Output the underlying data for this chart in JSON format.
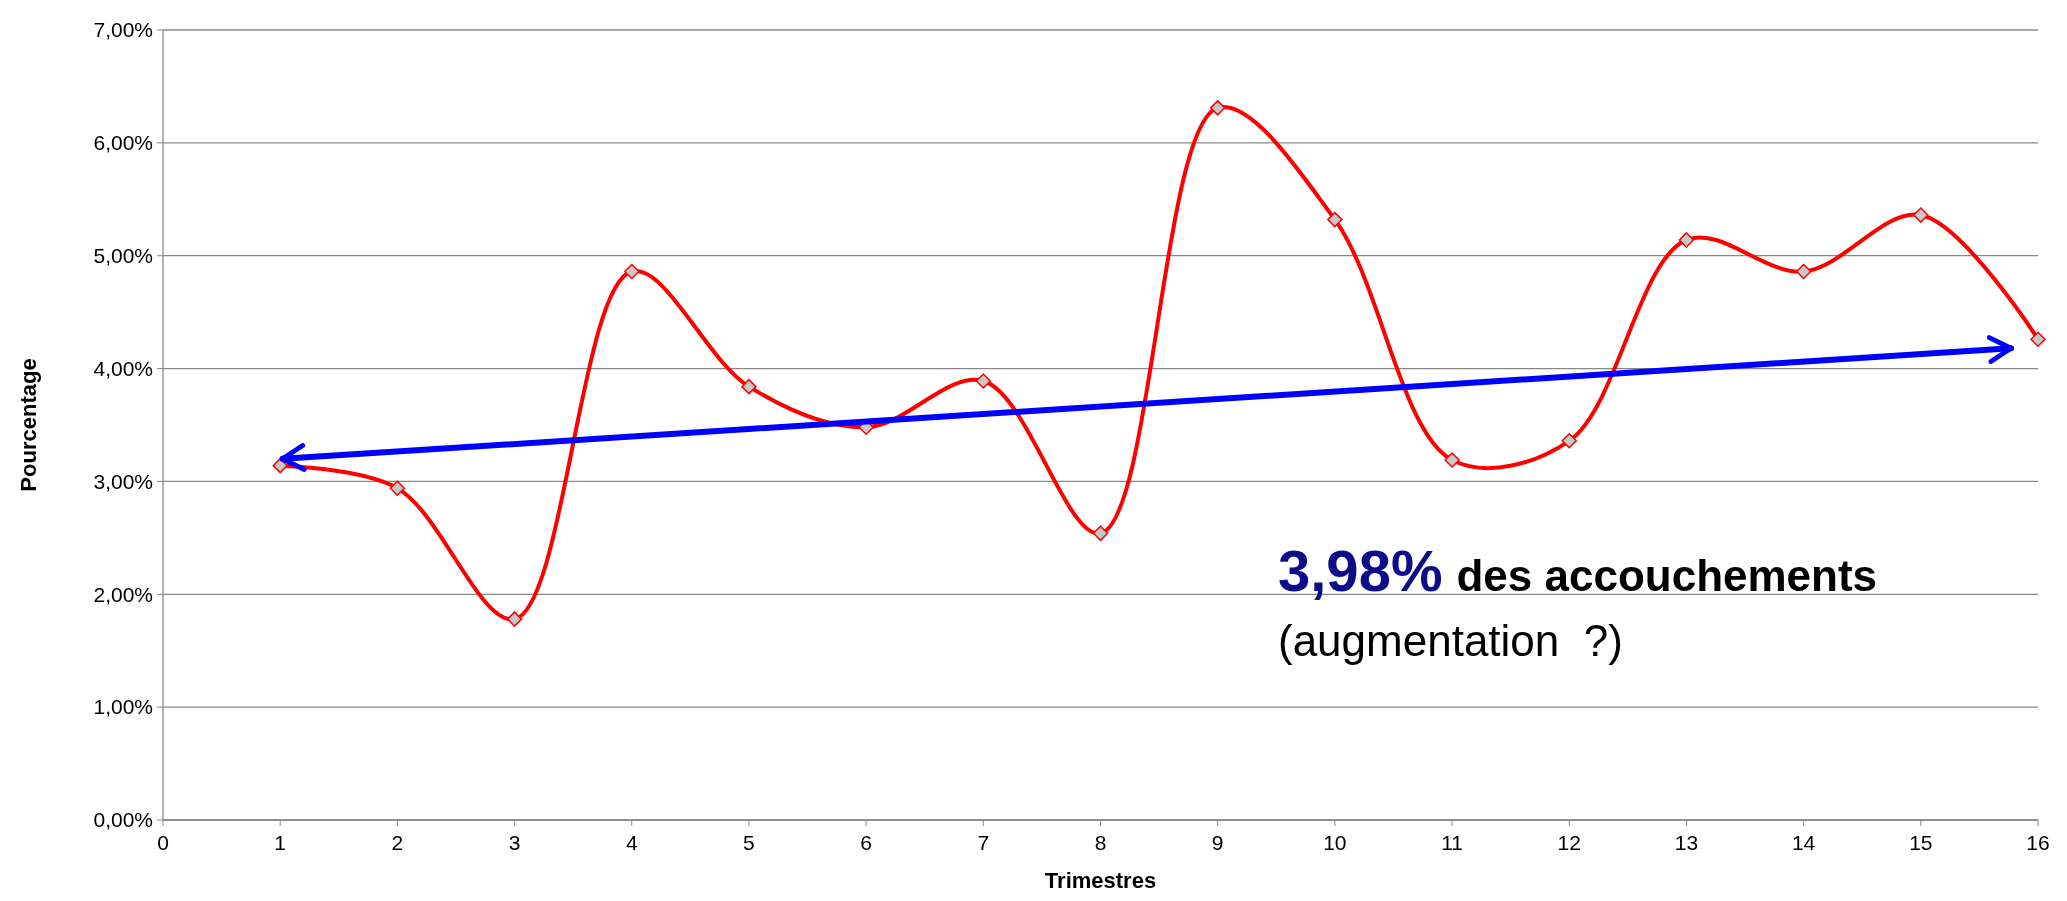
{
  "chart_data": {
    "type": "line",
    "xlabel": "Trimestres",
    "ylabel": "Pourcentage",
    "x": [
      1,
      2,
      3,
      4,
      5,
      6,
      7,
      8,
      9,
      10,
      11,
      12,
      13,
      14,
      15,
      16
    ],
    "series": [
      {
        "color": "#ff0000",
        "values": [
          3.14,
          2.94,
          1.78,
          4.86,
          3.84,
          3.48,
          3.89,
          2.54,
          6.31,
          5.32,
          3.19,
          3.36,
          5.14,
          4.86,
          5.36,
          4.26
        ]
      },
      {
        "color": "#0000ff",
        "x": [
          1.02,
          15.77
        ],
        "values": [
          3.2,
          4.18
        ],
        "marker": "none"
      }
    ],
    "xlim": [
      0,
      16
    ],
    "xticks": [
      0,
      1,
      2,
      3,
      4,
      5,
      6,
      7,
      8,
      9,
      10,
      11,
      12,
      13,
      14,
      15,
      16
    ],
    "ylim": [
      0,
      7
    ],
    "yticks": [
      {
        "value": 0,
        "label": "0,00%"
      },
      {
        "value": 1,
        "label": "1,00%"
      },
      {
        "value": 2,
        "label": "2,00%"
      },
      {
        "value": 3,
        "label": "3,00%"
      },
      {
        "value": 4,
        "label": "4,00%"
      },
      {
        "value": 5,
        "label": "5,00%"
      },
      {
        "value": 6,
        "label": "6,00%"
      },
      {
        "value": 7,
        "label": "7,00%"
      }
    ],
    "grid": "y",
    "marker": "diamond",
    "annotations": [
      "3,98%",
      "des accouchements",
      "(augmentation  ?)"
    ]
  }
}
